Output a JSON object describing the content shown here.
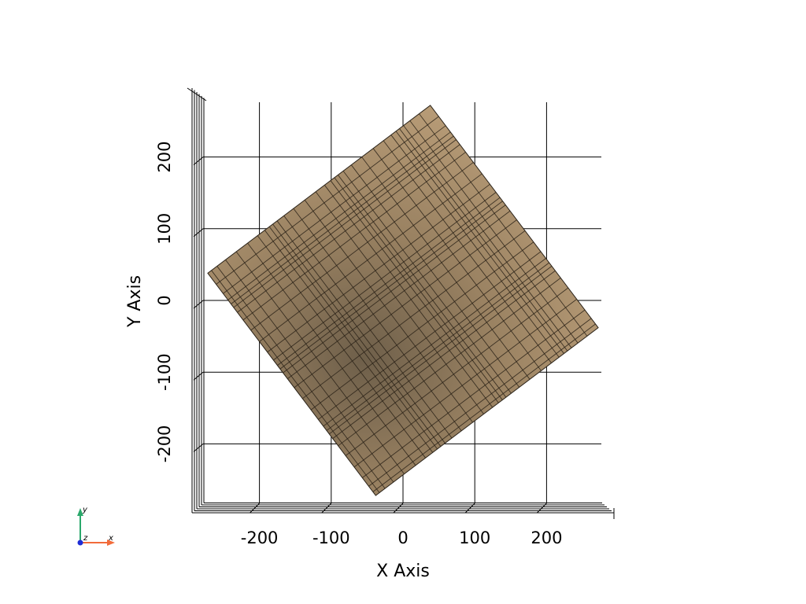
{
  "chart_data": {
    "type": "surface-mesh",
    "x_axis": {
      "title": "X Axis",
      "ticks": [
        -200,
        -100,
        0,
        100,
        200
      ],
      "tick_labels": [
        "-200",
        "-100",
        "0",
        "100",
        "200"
      ],
      "range": [
        -283,
        283
      ]
    },
    "y_axis": {
      "title": "Y Axis",
      "ticks": [
        -200,
        -100,
        0,
        100,
        200
      ],
      "tick_labels": [
        "-200",
        "-100",
        "0",
        "100",
        "200"
      ],
      "range": [
        -283,
        283
      ]
    },
    "surface": {
      "corners": [
        {
          "x": 38,
          "y": 272
        },
        {
          "x": 272,
          "y": -38
        },
        {
          "x": -38,
          "y": -272
        },
        {
          "x": -272,
          "y": 38
        }
      ],
      "mesh_divisions": 30,
      "color": "#b39671",
      "edge_color": "#2a2218"
    },
    "grid": true
  },
  "orientation_widget": {
    "x_label": "x",
    "y_label": "y",
    "z_label": "z",
    "x_color": "#f26b3a",
    "y_color": "#2aa86b",
    "z_color": "#1e2dd6"
  }
}
